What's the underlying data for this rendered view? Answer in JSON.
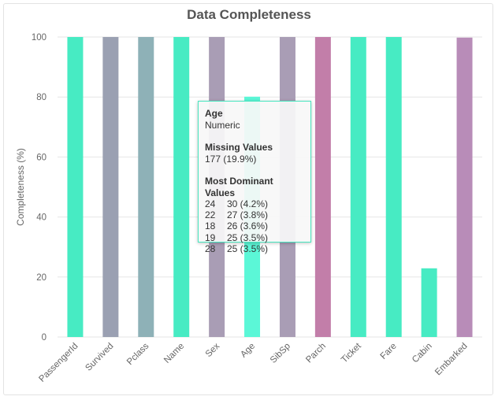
{
  "chart_data": {
    "type": "bar",
    "title": "Data Completeness",
    "ylabel": "Completeness (%)",
    "xlabel": "",
    "ylim": [
      0,
      100
    ],
    "yticks": [
      0,
      20,
      40,
      60,
      80,
      100
    ],
    "grid": true,
    "categories": [
      "PassengerId",
      "Survived",
      "Pclass",
      "Name",
      "Sex",
      "Age",
      "SibSp",
      "Parch",
      "Ticket",
      "Fare",
      "Cabin",
      "Embarked"
    ],
    "values": [
      100,
      100,
      100,
      100,
      100,
      80.1,
      100,
      100,
      100,
      100,
      22.9,
      99.8
    ],
    "colors": [
      "#47ebc3",
      "#9aa0b2",
      "#8eb1b7",
      "#47ebc3",
      "#a99db5",
      "#5bf7d7",
      "#a99db5",
      "#c27ea9",
      "#47ebc3",
      "#47ebc3",
      "#47ebc3",
      "#b88cb8"
    ]
  },
  "tooltip": {
    "name": "Age",
    "type": "Numeric",
    "missing_header": "Missing Values",
    "missing_value": "177 (19.9%)",
    "dominant_header": "Most Dominant Values",
    "dominant": [
      {
        "value": "24",
        "count": "30 (4.2%)"
      },
      {
        "value": "22",
        "count": "27 (3.8%)"
      },
      {
        "value": "18",
        "count": "26 (3.6%)"
      },
      {
        "value": "19",
        "count": "25 (3.5%)"
      },
      {
        "value": "28",
        "count": "25 (3.5%)"
      }
    ]
  }
}
